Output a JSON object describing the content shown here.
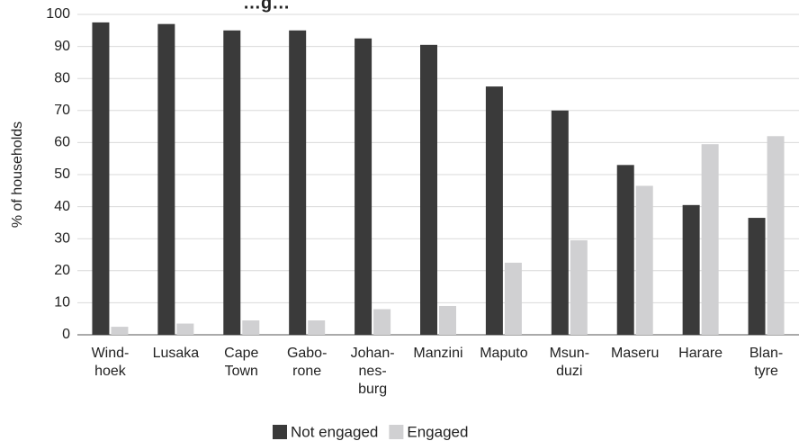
{
  "chart_data": {
    "type": "bar",
    "title": "…g…",
    "ylabel": "% of households",
    "xlabel": "",
    "ylim": [
      0,
      100
    ],
    "y_ticks": [
      0,
      10,
      20,
      30,
      40,
      50,
      60,
      70,
      80,
      90,
      100
    ],
    "grid": true,
    "legend_position": "bottom",
    "categories": [
      [
        "Wind-",
        "hoek"
      ],
      [
        "Lusaka"
      ],
      [
        "Cape",
        "Town"
      ],
      [
        "Gabo-",
        "rone"
      ],
      [
        "Johan-",
        "nes-",
        "burg"
      ],
      [
        "Manzini"
      ],
      [
        "Maputo"
      ],
      [
        "Msun-",
        "duzi"
      ],
      [
        "Maseru"
      ],
      [
        "Harare"
      ],
      [
        "Blan-",
        "tyre"
      ]
    ],
    "series": [
      {
        "name": "Not engaged",
        "color": "#3a3a3a",
        "values": [
          97.5,
          97,
          95,
          95,
          92.5,
          90.5,
          77.5,
          70,
          53,
          40.5,
          36.5
        ]
      },
      {
        "name": "Engaged",
        "color": "#d0d0d2",
        "values": [
          2.5,
          3.5,
          4.5,
          4.5,
          8,
          9,
          22.5,
          29.5,
          46.5,
          59.5,
          62
        ]
      }
    ]
  }
}
